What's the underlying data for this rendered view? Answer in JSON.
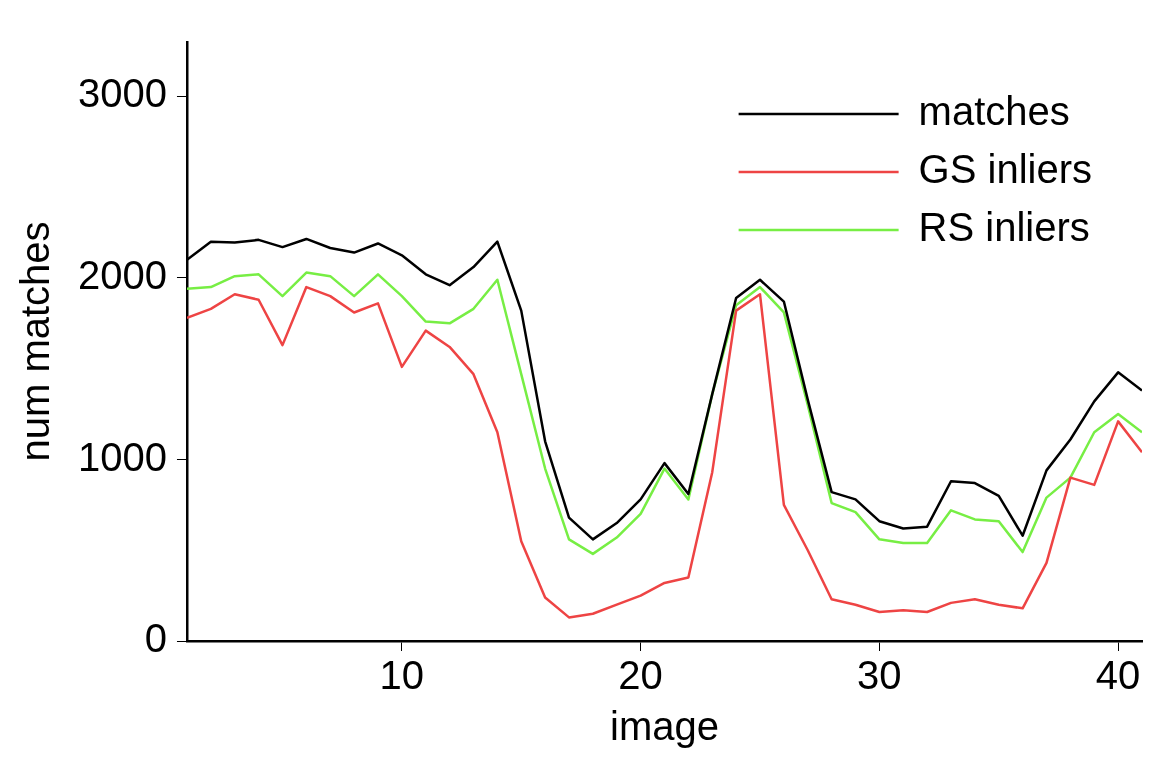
{
  "chart_data": {
    "type": "line",
    "xlabel": "image",
    "ylabel": "num matches",
    "x": [
      1,
      2,
      3,
      4,
      5,
      6,
      7,
      8,
      9,
      10,
      11,
      12,
      13,
      14,
      15,
      16,
      17,
      18,
      19,
      20,
      21,
      22,
      23,
      24,
      25,
      26,
      27,
      28,
      29,
      30,
      31,
      32,
      33,
      34,
      35,
      36,
      37,
      38,
      39,
      40,
      41
    ],
    "xlim": [
      1,
      41
    ],
    "xticks": [
      10,
      20,
      30,
      40
    ],
    "ylim": [
      0,
      3300
    ],
    "yticks": [
      0,
      1000,
      2000,
      3000
    ],
    "legend": "top right",
    "grid": false,
    "marker": "none",
    "line_style": "solid",
    "series": [
      {
        "name": "matches",
        "color": "#000000",
        "values": [
          2100,
          2200,
          2195,
          2210,
          2170,
          2215,
          2165,
          2140,
          2190,
          2125,
          2020,
          1960,
          2060,
          2200,
          1820,
          1100,
          680,
          560,
          650,
          780,
          980,
          810,
          1360,
          1890,
          1990,
          1870,
          1330,
          820,
          780,
          660,
          620,
          630,
          880,
          870,
          800,
          580,
          940,
          1110,
          1320,
          1480,
          1380
        ]
      },
      {
        "name": "GS inliers",
        "color": "#ee4444",
        "values": [
          1780,
          1830,
          1910,
          1880,
          1630,
          1950,
          1900,
          1810,
          1860,
          1510,
          1710,
          1620,
          1470,
          1150,
          550,
          240,
          130,
          150,
          200,
          250,
          320,
          350,
          930,
          1820,
          1910,
          750,
          500,
          230,
          200,
          160,
          170,
          160,
          210,
          230,
          200,
          180,
          430,
          900,
          860,
          1210,
          1040
        ]
      },
      {
        "name": "RS inliers",
        "color": "#77ee44",
        "values": [
          1940,
          1950,
          2010,
          2020,
          1900,
          2030,
          2010,
          1900,
          2020,
          1900,
          1760,
          1750,
          1830,
          1990,
          1470,
          950,
          560,
          480,
          570,
          700,
          950,
          780,
          1360,
          1850,
          1950,
          1810,
          1300,
          760,
          710,
          560,
          540,
          540,
          720,
          670,
          660,
          490,
          790,
          900,
          1150,
          1250,
          1150
        ]
      }
    ]
  }
}
